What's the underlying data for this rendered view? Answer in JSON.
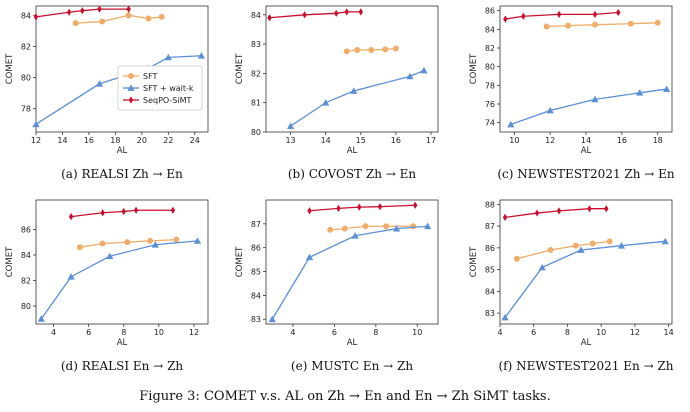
{
  "figure_caption": "Figure 3: COMET v.s. AL on Zh → En and En → Zh SiMT tasks.",
  "colors": {
    "SFT": "#f0ad6a",
    "SFT + wait-k": "#5b8fd6",
    "SeqPO-SiMT": "#c8102e"
  },
  "chart_data": [
    {
      "type": "line",
      "caption": "(a) REALSI Zh → En",
      "xlabel": "AL",
      "ylabel": "COMET",
      "xlim": [
        12,
        25
      ],
      "ylim": [
        76.5,
        84.6
      ],
      "xticks": [
        12,
        14,
        16,
        18,
        20,
        22,
        24
      ],
      "yticks": [
        78,
        80,
        82,
        84
      ],
      "legend": "center-right",
      "series": [
        {
          "name": "SFT",
          "x": [
            15,
            17,
            19,
            20.5,
            21.5
          ],
          "y": [
            83.5,
            83.6,
            84.0,
            83.8,
            83.9
          ]
        },
        {
          "name": "SFT + wait-k",
          "x": [
            12,
            16.8,
            20.5,
            22,
            24.5
          ],
          "y": [
            77,
            79.6,
            80.6,
            81.3,
            81.4
          ]
        },
        {
          "name": "SeqPO-SiMT",
          "x": [
            12,
            14.5,
            15.5,
            16.8,
            19
          ],
          "y": [
            83.9,
            84.2,
            84.3,
            84.4,
            84.4
          ]
        }
      ]
    },
    {
      "type": "line",
      "caption": "(b) COVOST Zh → En",
      "xlabel": "AL",
      "ylabel": "COMET",
      "xlim": [
        12.3,
        17.2
      ],
      "ylim": [
        80,
        84.3
      ],
      "xticks": [
        13,
        14,
        15,
        16,
        17
      ],
      "yticks": [
        80,
        81,
        82,
        83,
        84
      ],
      "series": [
        {
          "name": "SFT",
          "x": [
            14.6,
            14.9,
            15.3,
            15.7,
            16
          ],
          "y": [
            82.75,
            82.8,
            82.8,
            82.82,
            82.85
          ]
        },
        {
          "name": "SFT + wait-k",
          "x": [
            13,
            14,
            14.8,
            16.4,
            16.8
          ],
          "y": [
            80.2,
            81,
            81.4,
            81.9,
            82.1
          ]
        },
        {
          "name": "SeqPO-SiMT",
          "x": [
            12.4,
            13.4,
            14.3,
            14.6,
            15
          ],
          "y": [
            83.9,
            84,
            84.05,
            84.1,
            84.1
          ]
        }
      ]
    },
    {
      "type": "line",
      "caption": "(c) NEWSTEST2021 Zh → En",
      "xlabel": "AL",
      "ylabel": "COMET",
      "xlim": [
        9.2,
        18.8
      ],
      "ylim": [
        73,
        86.5
      ],
      "xticks": [
        10,
        12,
        14,
        16,
        18
      ],
      "yticks": [
        74,
        76,
        78,
        80,
        82,
        84,
        86
      ],
      "series": [
        {
          "name": "SFT",
          "x": [
            11.8,
            13,
            14.5,
            16.5,
            18
          ],
          "y": [
            84.3,
            84.4,
            84.5,
            84.6,
            84.7
          ]
        },
        {
          "name": "SFT + wait-k",
          "x": [
            9.8,
            12,
            14.5,
            17,
            18.5
          ],
          "y": [
            73.8,
            75.3,
            76.5,
            77.2,
            77.6
          ]
        },
        {
          "name": "SeqPO-SiMT",
          "x": [
            9.5,
            10.5,
            12.5,
            14.5,
            15.8
          ],
          "y": [
            85.1,
            85.4,
            85.6,
            85.6,
            85.8
          ]
        }
      ]
    },
    {
      "type": "line",
      "caption": "(d) REALSI En → Zh",
      "xlabel": "AL",
      "ylabel": "COMET",
      "xlim": [
        3,
        12.8
      ],
      "ylim": [
        78.6,
        88.3
      ],
      "xticks": [
        4,
        6,
        8,
        10,
        12
      ],
      "yticks": [
        80,
        82,
        84,
        86
      ],
      "series": [
        {
          "name": "SFT",
          "x": [
            5.5,
            6.8,
            8.2,
            9.5,
            11
          ],
          "y": [
            84.6,
            84.9,
            85,
            85.1,
            85.2
          ]
        },
        {
          "name": "SFT + wait-k",
          "x": [
            3.3,
            5,
            7.2,
            9.8,
            12.2
          ],
          "y": [
            79,
            82.3,
            83.9,
            84.8,
            85.1
          ]
        },
        {
          "name": "SeqPO-SiMT",
          "x": [
            5,
            6.8,
            8,
            8.7,
            10.8
          ],
          "y": [
            87,
            87.3,
            87.4,
            87.5,
            87.5
          ]
        }
      ]
    },
    {
      "type": "line",
      "caption": "(e) MUSTC En → Zh",
      "xlabel": "AL",
      "ylabel": "COMET",
      "xlim": [
        2.7,
        11
      ],
      "ylim": [
        82.8,
        88
      ],
      "xticks": [
        4,
        6,
        8,
        10
      ],
      "yticks": [
        83,
        84,
        85,
        86,
        87
      ],
      "series": [
        {
          "name": "SFT",
          "x": [
            5.8,
            6.5,
            7.5,
            8.5,
            9.8
          ],
          "y": [
            86.75,
            86.8,
            86.9,
            86.9,
            86.9
          ]
        },
        {
          "name": "SFT + wait-k",
          "x": [
            3,
            4.8,
            7,
            9,
            10.5
          ],
          "y": [
            83,
            85.6,
            86.5,
            86.8,
            86.9
          ]
        },
        {
          "name": "SeqPO-SiMT",
          "x": [
            4.8,
            6.2,
            7.2,
            8.2,
            9.9
          ],
          "y": [
            87.55,
            87.65,
            87.7,
            87.72,
            87.78
          ]
        }
      ]
    },
    {
      "type": "line",
      "caption": "(f) NEWSTEST2021 En → Zh",
      "xlabel": "AL",
      "ylabel": "COMET",
      "xlim": [
        4,
        14.2
      ],
      "ylim": [
        82.5,
        88.2
      ],
      "xticks": [
        4,
        6,
        8,
        10,
        12,
        14
      ],
      "yticks": [
        83,
        84,
        85,
        86,
        87,
        88
      ],
      "series": [
        {
          "name": "SFT",
          "x": [
            5,
            7,
            8.5,
            9.5,
            10.5
          ],
          "y": [
            85.5,
            85.9,
            86.1,
            86.2,
            86.3
          ]
        },
        {
          "name": "SFT + wait-k",
          "x": [
            4.3,
            6.5,
            8.8,
            11.2,
            13.8
          ],
          "y": [
            82.8,
            85.1,
            85.9,
            86.1,
            86.3
          ]
        },
        {
          "name": "SeqPO-SiMT",
          "x": [
            4.3,
            6.2,
            7.5,
            9.3,
            10.3
          ],
          "y": [
            87.4,
            87.6,
            87.7,
            87.8,
            87.8
          ]
        }
      ]
    }
  ]
}
